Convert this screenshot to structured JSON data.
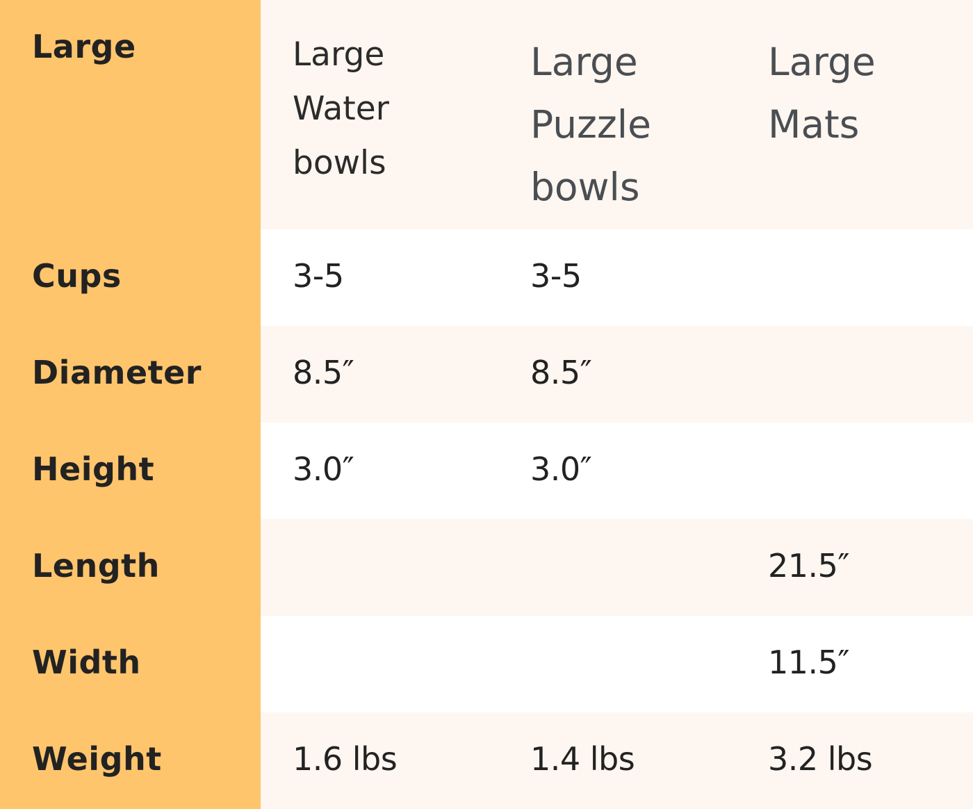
{
  "colors": {
    "label_column": "#FFC56D",
    "alt_row": "#FEF6F0",
    "row": "#FFFFFF"
  },
  "header": {
    "label": "Large",
    "columns": [
      "Large Water bowls",
      "Large Puzzle bowls",
      "Large Mats"
    ]
  },
  "rows": [
    {
      "label": "Cups",
      "values": [
        "3-5",
        "3-5",
        ""
      ]
    },
    {
      "label": "Diameter",
      "values": [
        "8.5″",
        "8.5″",
        ""
      ]
    },
    {
      "label": "Height",
      "values": [
        "3.0″",
        "3.0″",
        ""
      ]
    },
    {
      "label": "Length",
      "values": [
        "",
        "",
        "21.5″"
      ]
    },
    {
      "label": "Width",
      "values": [
        "",
        "",
        "11.5″"
      ]
    },
    {
      "label": "Weight",
      "values": [
        "1.6 lbs",
        "1.4 lbs",
        "3.2 lbs"
      ]
    }
  ]
}
